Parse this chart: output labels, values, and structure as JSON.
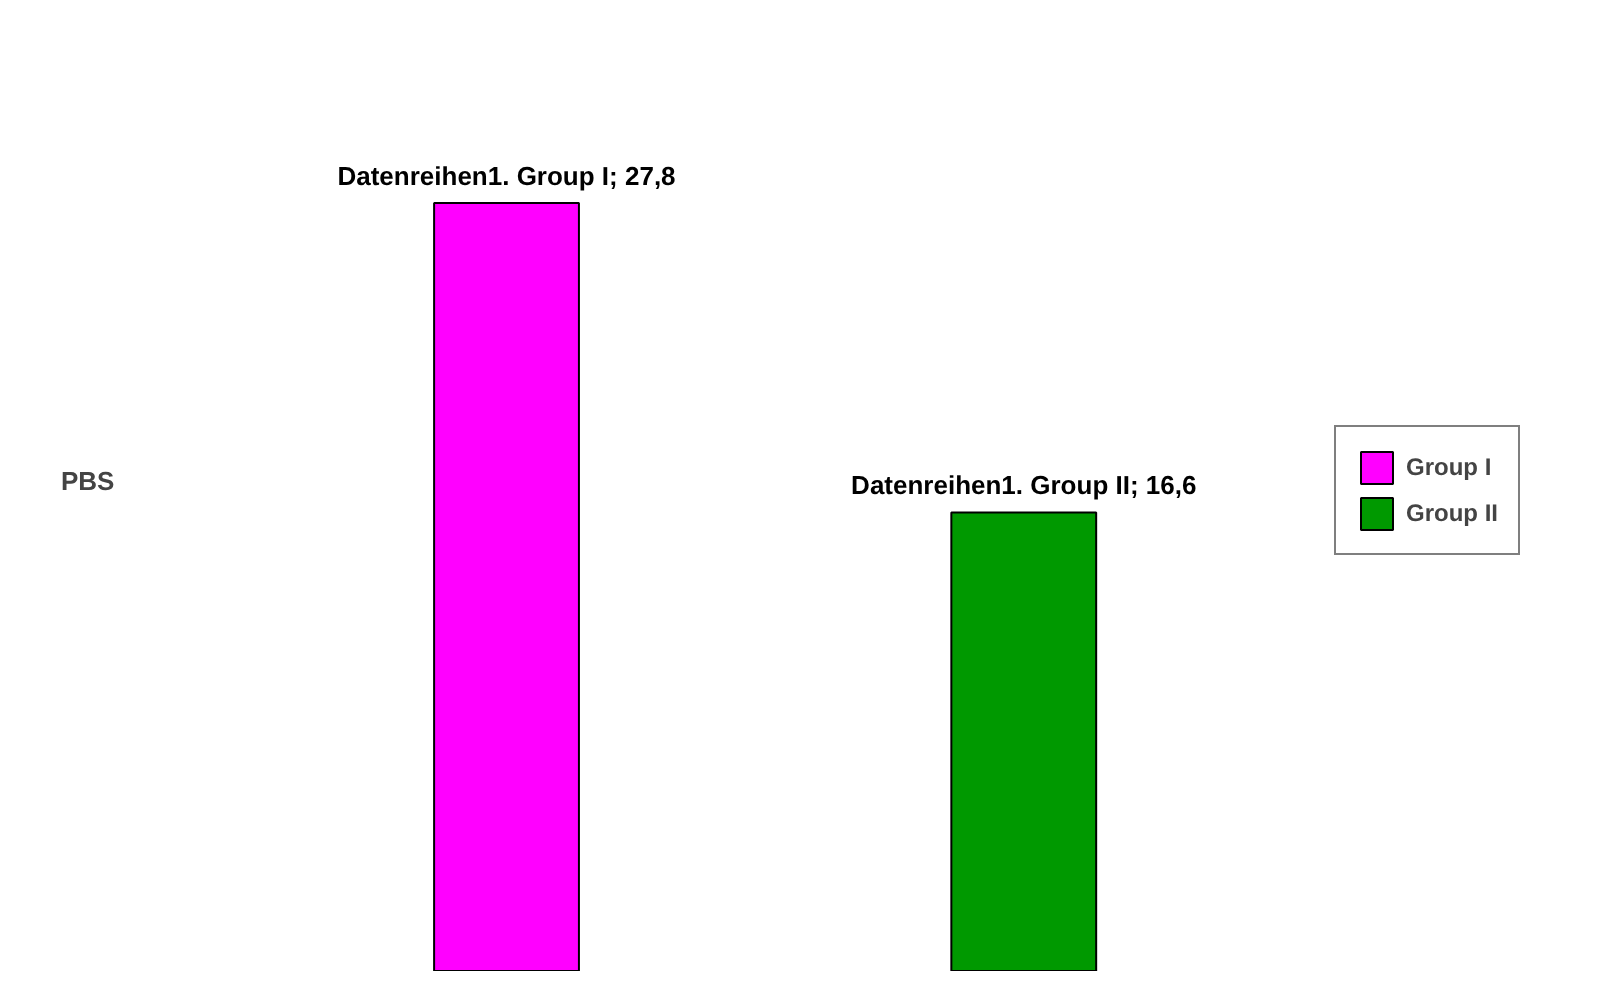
{
  "chart_data": {
    "type": "bar",
    "stacked": true,
    "categories": [
      null,
      null
    ],
    "series": [
      {
        "name": "Group I",
        "color": "#ff00ff",
        "values": [
          27.8,
          null
        ],
        "value_labels": [
          "Datenreihen1. Group I; 27,8",
          null
        ]
      },
      {
        "name": "Group II",
        "color": "#009900",
        "values": [
          null,
          16.6
        ],
        "value_labels": [
          null,
          "Datenreihen1. Group II; 16,6"
        ]
      }
    ],
    "annotations": [
      "PBS"
    ],
    "legend": "right"
  }
}
